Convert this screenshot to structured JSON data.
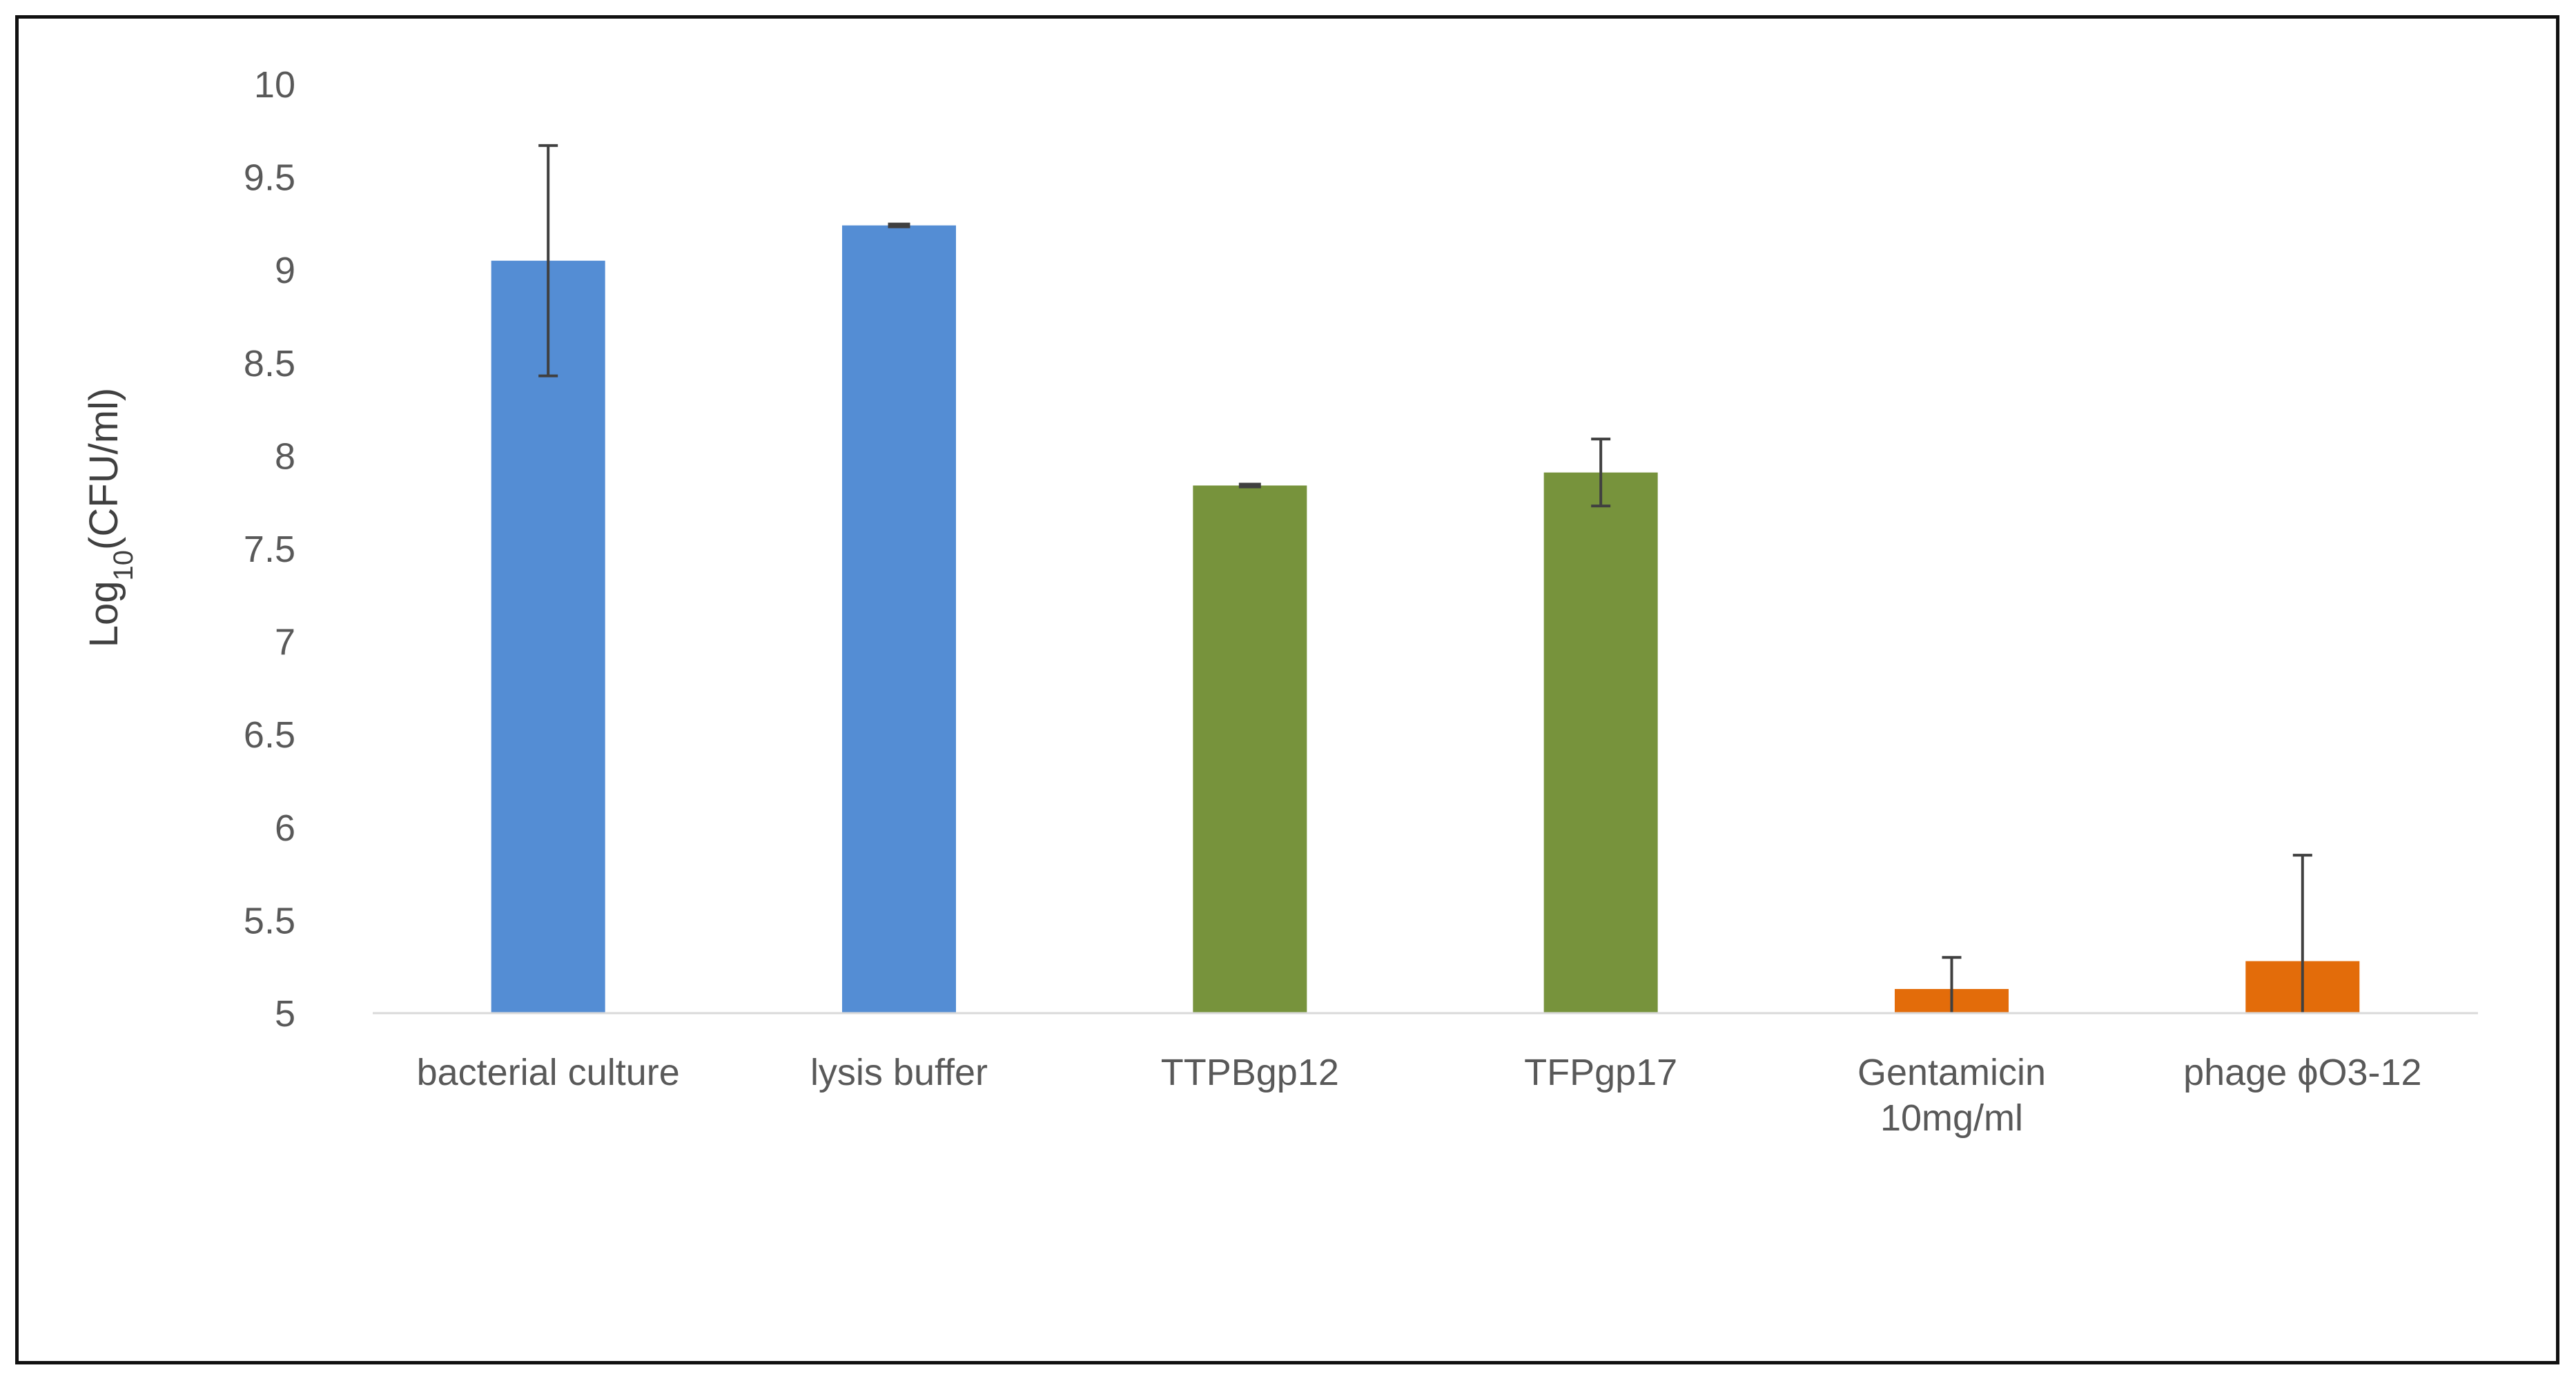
{
  "chart_data": {
    "type": "bar",
    "title": "",
    "xlabel": "",
    "ylabel": {
      "prefix": "Log",
      "subscript": "10",
      "suffix": "(CFU/ml)"
    },
    "ylim": [
      5,
      10
    ],
    "yticks": [
      "5",
      "5.5",
      "6",
      "6.5",
      "7",
      "7.5",
      "8",
      "8.5",
      "9",
      "9.5",
      "10"
    ],
    "grid": false,
    "legend": "none",
    "categories": [
      [
        "bacterial culture"
      ],
      [
        "lysis buffer"
      ],
      [
        "TTPBgp12"
      ],
      [
        "TFPgp17"
      ],
      [
        "Gentamicin",
        "10mg/ml"
      ],
      [
        "phage ϕO3-12"
      ]
    ],
    "values": [
      9.05,
      9.24,
      7.84,
      7.91,
      5.13,
      5.28
    ],
    "error_upper": [
      9.67,
      9.24,
      7.84,
      8.09,
      5.3,
      5.85
    ],
    "error_lower": [
      8.43,
      9.24,
      7.84,
      7.73,
      5.0,
      5.0
    ],
    "colors": [
      "#548dd4",
      "#548dd4",
      "#77933c",
      "#77933c",
      "#e36c0a",
      "#e36c0a"
    ],
    "error_bar_color": "#404040",
    "axis_color": "#d9d9d9"
  }
}
